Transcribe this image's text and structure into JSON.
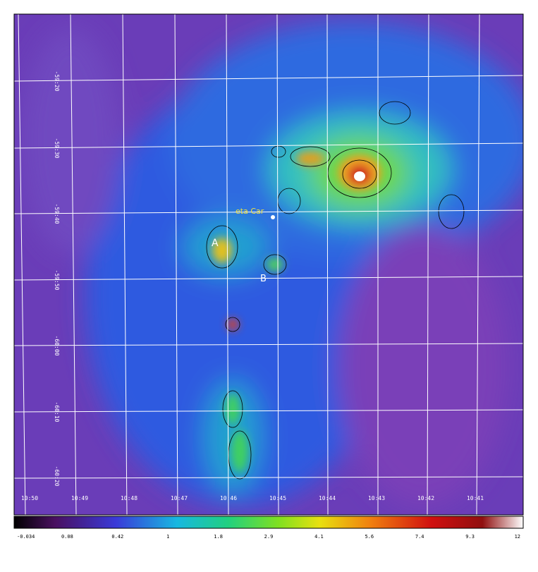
{
  "image": {
    "annotations": {
      "eta_car": "eta Car",
      "a": "A",
      "b": "B"
    },
    "ra_labels": [
      "10:50",
      "10:49",
      "10:48",
      "10:47",
      "10:46",
      "10:45",
      "10:44",
      "10:43",
      "10:42",
      "10:41"
    ],
    "dec_labels": [
      "-59:20",
      "-59:30",
      "-59:40",
      "-59:50",
      "-60:00",
      "-60:10",
      "-60:20"
    ]
  },
  "colorbar": {
    "labels": [
      "-0.034",
      "0.08",
      "0.42",
      "1",
      "1.8",
      "2.9",
      "4.1",
      "5.6",
      "7.4",
      "9.3",
      "12"
    ]
  }
}
